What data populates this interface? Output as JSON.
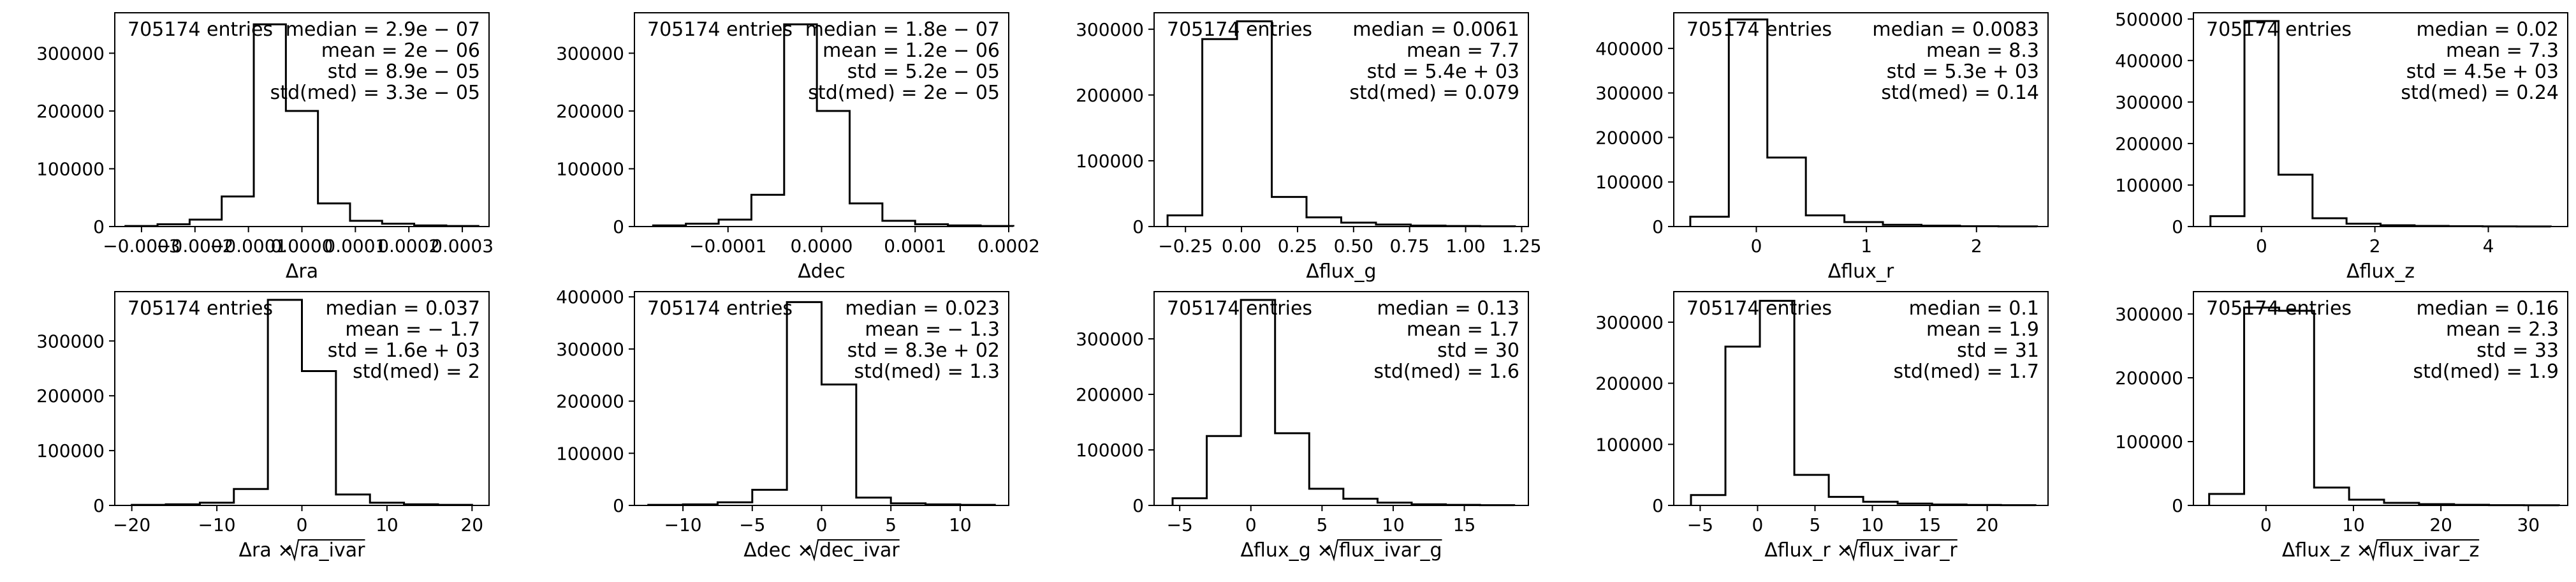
{
  "chart_data": [
    {
      "type": "histogram",
      "xlabel": "Δra",
      "entries_label": "705174 entries",
      "stats": [
        "median = 2.9e − 07",
        "mean = 2e − 06",
        "std = 8.9e − 05",
        "std(med) = 3.3e − 05"
      ],
      "bin_edges": [
        -0.00033,
        -0.00027,
        -0.00021,
        -0.00015,
        -9e-05,
        -3e-05,
        3e-05,
        9e-05,
        0.00015,
        0.00021,
        0.00027,
        0.00033
      ],
      "counts": [
        1000,
        4000,
        12000,
        52000,
        350000,
        200000,
        40000,
        10000,
        5000,
        2000,
        1000
      ],
      "xlim": [
        -0.00035,
        0.00035
      ],
      "ylim": [
        0,
        370000
      ],
      "xticks": [
        -0.0003,
        -0.0002,
        -0.0001,
        0.0,
        0.0001,
        0.0002,
        0.0003
      ],
      "xtick_labels": [
        "−0.0003",
        "−0.0002",
        "−0.0001",
        "0.0000",
        "0.0001",
        "0.0002",
        "0.0003"
      ],
      "yticks": [
        0,
        100000,
        200000,
        300000
      ],
      "ytick_labels": [
        "0",
        "100000",
        "200000",
        "300000"
      ]
    },
    {
      "type": "histogram",
      "xlabel": "Δdec",
      "entries_label": "705174 entries",
      "stats": [
        "median = 1.8e − 07",
        "mean = 1.2e − 06",
        "std = 5.2e − 05",
        "std(med) = 2e − 05"
      ],
      "bin_edges": [
        -0.00018,
        -0.000145,
        -0.00011,
        -7.5e-05,
        -4e-05,
        -5e-06,
        3e-05,
        6.5e-05,
        0.0001,
        0.000135,
        0.00017,
        0.000205
      ],
      "counts": [
        2000,
        5000,
        12000,
        55000,
        350000,
        200000,
        40000,
        10000,
        4000,
        2000,
        1000
      ],
      "xlim": [
        -0.0002,
        0.0002
      ],
      "ylim": [
        0,
        370000
      ],
      "xticks": [
        -0.0001,
        0.0,
        0.0001,
        0.0002
      ],
      "xtick_labels": [
        "−0.0001",
        "0.0000",
        "0.0001",
        "0.0002"
      ],
      "yticks": [
        0,
        100000,
        200000,
        300000
      ],
      "ytick_labels": [
        "0",
        "100000",
        "200000",
        "300000"
      ]
    },
    {
      "type": "histogram",
      "xlabel": "Δflux_g",
      "entries_label": "705174 entries",
      "stats": [
        "median = 0.0061",
        "mean = 7.7",
        "std = 5.4e + 03",
        "std(med) = 0.079"
      ],
      "bin_edges": [
        -0.33,
        -0.175,
        -0.02,
        0.135,
        0.29,
        0.445,
        0.6,
        0.755,
        0.91,
        1.065,
        1.22
      ],
      "counts": [
        17000,
        285000,
        312000,
        45000,
        14000,
        6000,
        3000,
        1500,
        800,
        400
      ],
      "xlim": [
        -0.39,
        1.28
      ],
      "ylim": [
        0,
        325000
      ],
      "xticks": [
        -0.25,
        0.0,
        0.25,
        0.5,
        0.75,
        1.0,
        1.25
      ],
      "xtick_labels": [
        "−0.25",
        "0.00",
        "0.25",
        "0.50",
        "0.75",
        "1.00",
        "1.25"
      ],
      "yticks": [
        0,
        100000,
        200000,
        300000
      ],
      "ytick_labels": [
        "0",
        "100000",
        "200000",
        "300000"
      ]
    },
    {
      "type": "histogram",
      "xlabel": "Δflux_r",
      "entries_label": "705174 entries",
      "stats": [
        "median = 0.0083",
        "mean = 8.3",
        "std = 5.3e + 03",
        "std(med) = 0.14"
      ],
      "bin_edges": [
        -0.6,
        -0.25,
        0.1,
        0.45,
        0.8,
        1.15,
        1.5,
        1.85,
        2.2,
        2.55
      ],
      "counts": [
        22000,
        465000,
        155000,
        25000,
        10000,
        4000,
        2000,
        800,
        300
      ],
      "xlim": [
        -0.75,
        2.65
      ],
      "ylim": [
        0,
        480000
      ],
      "xticks": [
        0,
        1,
        2
      ],
      "xtick_labels": [
        "0",
        "1",
        "2"
      ],
      "yticks": [
        0,
        100000,
        200000,
        300000,
        400000
      ],
      "ytick_labels": [
        "0",
        "100000",
        "200000",
        "300000",
        "400000"
      ]
    },
    {
      "type": "histogram",
      "xlabel": "Δflux_z",
      "entries_label": "705174 entries",
      "stats": [
        "median = 0.02",
        "mean = 7.3",
        "std = 4.5e + 03",
        "std(med) = 0.24"
      ],
      "bin_edges": [
        -0.9,
        -0.3,
        0.3,
        0.9,
        1.5,
        2.1,
        2.7,
        3.3,
        3.9,
        4.5,
        5.1
      ],
      "counts": [
        25000,
        495000,
        125000,
        20000,
        7000,
        3000,
        1500,
        700,
        300,
        100
      ],
      "xlim": [
        -1.2,
        5.4
      ],
      "ylim": [
        0,
        515000
      ],
      "xticks": [
        0,
        2,
        4
      ],
      "xtick_labels": [
        "0",
        "2",
        "4"
      ],
      "yticks": [
        0,
        100000,
        200000,
        300000,
        400000,
        500000
      ],
      "ytick_labels": [
        "0",
        "100000",
        "200000",
        "300000",
        "400000",
        "500000"
      ]
    },
    {
      "type": "histogram",
      "xlabel_main": "Δra × ",
      "xlabel_sqrt": "ra_ivar",
      "entries_label": "705174 entries",
      "stats": [
        "median = 0.037",
        "mean = − 1.7",
        "std = 1.6e + 03",
        "std(med) = 2"
      ],
      "bin_edges": [
        -20,
        -16,
        -12,
        -8,
        -4,
        0,
        4,
        8,
        12,
        16,
        20
      ],
      "counts": [
        1000,
        2000,
        5000,
        30000,
        375000,
        245000,
        20000,
        5000,
        2000,
        1000
      ],
      "xlim": [
        -22,
        22
      ],
      "ylim": [
        0,
        390000
      ],
      "xticks": [
        -20,
        -10,
        0,
        10,
        20
      ],
      "xtick_labels": [
        "−20",
        "−10",
        "0",
        "10",
        "20"
      ],
      "yticks": [
        0,
        100000,
        200000,
        300000
      ],
      "ytick_labels": [
        "0",
        "100000",
        "200000",
        "300000"
      ]
    },
    {
      "type": "histogram",
      "xlabel_main": "Δdec × ",
      "xlabel_sqrt": "dec_ivar",
      "entries_label": "705174 entries",
      "stats": [
        "median = 0.023",
        "mean = − 1.3",
        "std = 8.3e + 02",
        "std(med) = 1.3"
      ],
      "bin_edges": [
        -12.5,
        -10,
        -7.5,
        -5,
        -2.5,
        0,
        2.5,
        5,
        7.5,
        10,
        12.5
      ],
      "counts": [
        1000,
        2000,
        6000,
        30000,
        390000,
        232000,
        15000,
        4000,
        2000,
        1000
      ],
      "xlim": [
        -13.5,
        13.5
      ],
      "ylim": [
        0,
        410000
      ],
      "xticks": [
        -10,
        -5,
        0,
        5,
        10
      ],
      "xtick_labels": [
        "−10",
        "−5",
        "0",
        "5",
        "10"
      ],
      "yticks": [
        0,
        100000,
        200000,
        300000,
        400000
      ],
      "ytick_labels": [
        "0",
        "100000",
        "200000",
        "300000",
        "400000"
      ]
    },
    {
      "type": "histogram",
      "xlabel_main": "Δflux_g × ",
      "xlabel_sqrt": "flux_ivar_g",
      "entries_label": "705174 entries",
      "stats": [
        "median = 0.13",
        "mean = 1.7",
        "std = 30",
        "std(med) = 1.6"
      ],
      "bin_edges": [
        -5.5,
        -3.1,
        -0.7,
        1.7,
        4.1,
        6.5,
        8.9,
        11.3,
        13.7,
        16.1,
        18.5
      ],
      "counts": [
        13000,
        125000,
        370000,
        130000,
        30000,
        12000,
        5000,
        2000,
        1000,
        500
      ],
      "xlim": [
        -6.8,
        19.5
      ],
      "ylim": [
        0,
        385000
      ],
      "xticks": [
        -5,
        0,
        5,
        10,
        15
      ],
      "xtick_labels": [
        "−5",
        "0",
        "5",
        "10",
        "15"
      ],
      "yticks": [
        0,
        100000,
        200000,
        300000
      ],
      "ytick_labels": [
        "0",
        "100000",
        "200000",
        "300000"
      ]
    },
    {
      "type": "histogram",
      "xlabel_main": "Δflux_r × ",
      "xlabel_sqrt": "flux_ivar_r",
      "entries_label": "705174 entries",
      "stats": [
        "median = 0.1",
        "mean = 1.9",
        "std = 31",
        "std(med) = 1.7"
      ],
      "bin_edges": [
        -5.8,
        -2.8,
        0.2,
        3.2,
        6.2,
        9.2,
        12.2,
        15.2,
        18.2,
        21.2,
        24.2
      ],
      "counts": [
        17000,
        260000,
        335000,
        50000,
        14000,
        6000,
        3000,
        1500,
        800,
        400
      ],
      "xlim": [
        -7.3,
        25.3
      ],
      "ylim": [
        0,
        350000
      ],
      "xticks": [
        -5,
        0,
        5,
        10,
        15,
        20
      ],
      "xtick_labels": [
        "−5",
        "0",
        "5",
        "10",
        "15",
        "20"
      ],
      "yticks": [
        0,
        100000,
        200000,
        300000
      ],
      "ytick_labels": [
        "0",
        "100000",
        "200000",
        "300000"
      ]
    },
    {
      "type": "histogram",
      "xlabel_main": "Δflux_z × ",
      "xlabel_sqrt": "flux_ivar_z",
      "entries_label": "705174 entries",
      "stats": [
        "median = 0.16",
        "mean = 2.3",
        "std = 33",
        "std(med) = 1.9"
      ],
      "bin_edges": [
        -6.5,
        -2.5,
        1.5,
        5.5,
        9.5,
        13.5,
        17.5,
        21.5,
        25.5,
        29.5,
        33.5
      ],
      "counts": [
        18000,
        310000,
        305000,
        28000,
        9000,
        4000,
        2000,
        1000,
        400,
        200
      ],
      "xlim": [
        -8.3,
        34.5
      ],
      "ylim": [
        0,
        335000
      ],
      "xticks": [
        0,
        10,
        20,
        30
      ],
      "xtick_labels": [
        "0",
        "10",
        "20",
        "30"
      ],
      "yticks": [
        0,
        100000,
        200000,
        300000
      ],
      "ytick_labels": [
        "0",
        "100000",
        "200000",
        "300000"
      ]
    }
  ]
}
